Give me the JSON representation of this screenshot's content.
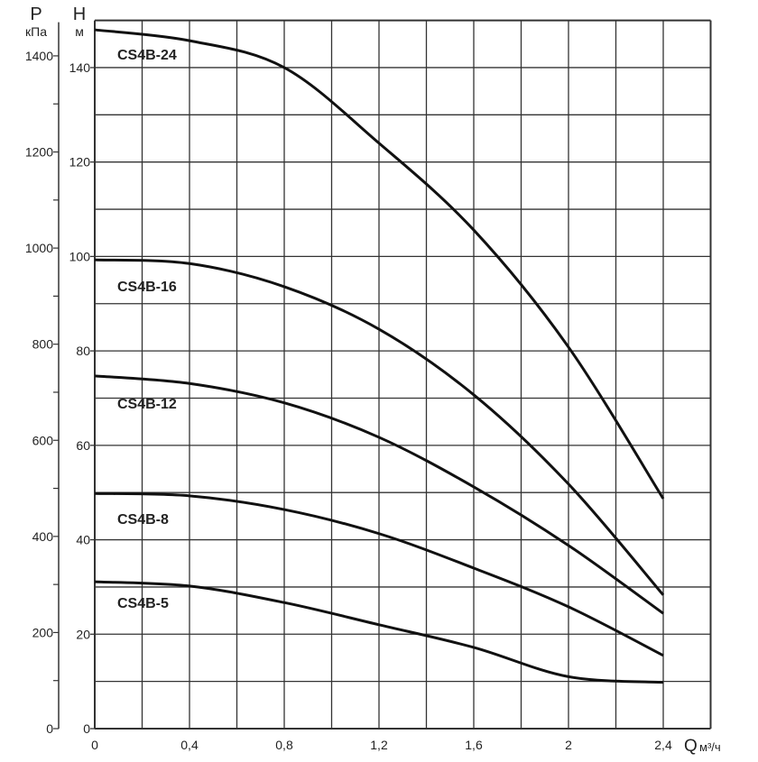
{
  "chart_data": {
    "type": "line",
    "title": "",
    "xlabel": "Q",
    "xunit": "м³/ч",
    "ylabel_left": "P",
    "yunit_left": "кПа",
    "ylabel_right": "H",
    "yunit_right": "м",
    "xlim": [
      0,
      2.6
    ],
    "ylim_H": [
      0,
      150
    ],
    "ylim_P": [
      0,
      1470
    ],
    "grid": true,
    "x_ticks": [
      "0",
      "0,4",
      "0,8",
      "1,2",
      "1,6",
      "2",
      "2,4"
    ],
    "x_tick_values": [
      0,
      0.4,
      0.8,
      1.2,
      1.6,
      2.0,
      2.4
    ],
    "H_ticks": [
      "0",
      "20",
      "40",
      "60",
      "80",
      "100",
      "120",
      "140"
    ],
    "P_ticks": [
      "0",
      "200",
      "400",
      "600",
      "800",
      "1000",
      "1200",
      "1400"
    ],
    "x": [
      0,
      0.4,
      0.8,
      1.2,
      1.6,
      2.0,
      2.4
    ],
    "series": [
      {
        "name": "CS4B-24",
        "values": [
          148,
          145.7,
          140,
          124,
          105.6,
          80.8,
          48.7
        ]
      },
      {
        "name": "CS4B-16",
        "values": [
          99.3,
          98.5,
          93.6,
          84.6,
          70.7,
          51.8,
          28.3
        ]
      },
      {
        "name": "CS4B-12",
        "values": [
          74.7,
          73.1,
          69,
          61.7,
          51.2,
          38.8,
          24.4
        ]
      },
      {
        "name": "CS4B-8",
        "values": [
          49.8,
          49.3,
          46.4,
          41.3,
          34,
          25.8,
          15.5
        ]
      },
      {
        "name": "CS4B-5",
        "values": [
          31.1,
          30.2,
          26.7,
          22,
          17.2,
          11,
          9.8
        ]
      }
    ]
  }
}
